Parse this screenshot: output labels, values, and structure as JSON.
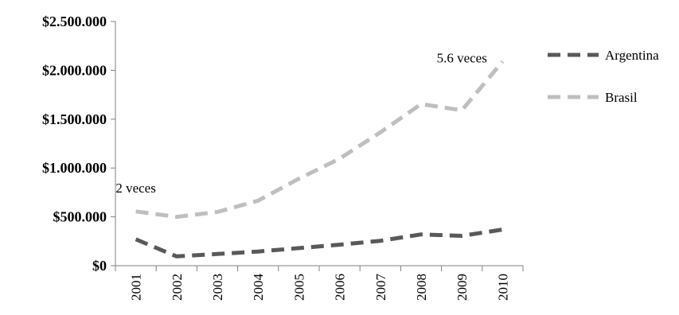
{
  "chart_data": {
    "type": "line",
    "x": [
      "2001",
      "2002",
      "2003",
      "2004",
      "2005",
      "2006",
      "2007",
      "2008",
      "2009",
      "2010"
    ],
    "series": [
      {
        "name": "Argentina",
        "color": "#595959",
        "values": [
          270000,
          95000,
          120000,
          145000,
          180000,
          215000,
          255000,
          320000,
          305000,
          370000
        ]
      },
      {
        "name": "Brasil",
        "color": "#bfbfbf",
        "values": [
          555000,
          500000,
          550000,
          665000,
          890000,
          1095000,
          1365000,
          1655000,
          1590000,
          2090000
        ]
      }
    ],
    "ylim": [
      0,
      2500000
    ],
    "yticks": [
      0,
      500000,
      1000000,
      1500000,
      2000000,
      2500000
    ],
    "ytick_labels": [
      "$0",
      "$500.000",
      "$1.000.000",
      "$1.500.000",
      "$2.000.000",
      "$2.500.000"
    ],
    "grid": false,
    "legend": "right",
    "annotations": [
      {
        "text": "2 veces",
        "x": "2001",
        "y": 750000
      },
      {
        "text": "5.6 veces",
        "x": "2009",
        "y": 2080000
      }
    ]
  }
}
